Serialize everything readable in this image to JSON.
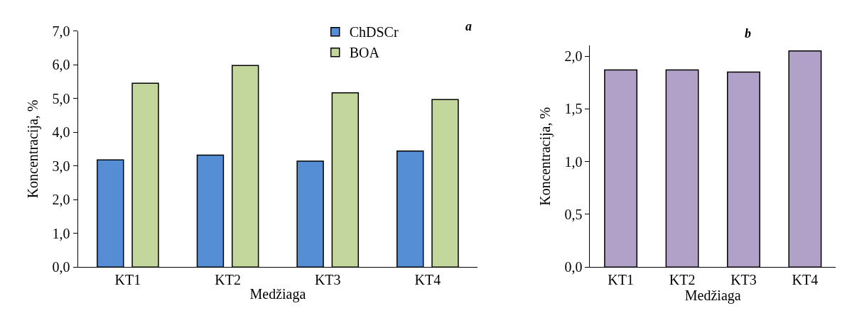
{
  "chart_data": [
    {
      "type": "bar",
      "categories": [
        "KT1",
        "KT2",
        "KT3",
        "KT4"
      ],
      "xlabel": "Medžiaga",
      "ylabel": "Koncentracija, %",
      "annotations": [
        "a"
      ],
      "series": [
        {
          "name": "ChDSCr",
          "color": "#558ed5",
          "values": [
            3.18,
            3.32,
            3.14,
            3.44
          ]
        },
        {
          "name": "BOA",
          "color": "#c3d69b",
          "values": [
            5.45,
            5.98,
            5.17,
            4.97
          ]
        }
      ],
      "ylim": [
        0,
        7
      ],
      "yticks": [
        {
          "value": 0,
          "label": "0,0"
        },
        {
          "value": 1,
          "label": "1,0"
        },
        {
          "value": 2,
          "label": "2,0"
        },
        {
          "value": 3,
          "label": "3,0"
        },
        {
          "value": 4,
          "label": "4,0"
        },
        {
          "value": 5,
          "label": "5,0"
        },
        {
          "value": 6,
          "label": "6,0"
        },
        {
          "value": 7,
          "label": "7,0"
        }
      ],
      "legend": "top right"
    },
    {
      "type": "bar",
      "categories": [
        "KT1",
        "KT2",
        "KT3",
        "KT4"
      ],
      "xlabel": "Medžiaga",
      "ylabel": "Koncentracija, %",
      "annotations": [
        "b"
      ],
      "series": [
        {
          "color": "#b1a0c7",
          "values": [
            1.87,
            1.87,
            1.85,
            2.05
          ]
        }
      ],
      "ylim": [
        0,
        2.1
      ],
      "yticks": [
        {
          "value": 0,
          "label": "0,0"
        },
        {
          "value": 0.5,
          "label": "0,5"
        },
        {
          "value": 1,
          "label": "1,0"
        },
        {
          "value": 1.5,
          "label": "1,5"
        },
        {
          "value": 2,
          "label": "2,0"
        }
      ],
      "legend": false
    }
  ]
}
